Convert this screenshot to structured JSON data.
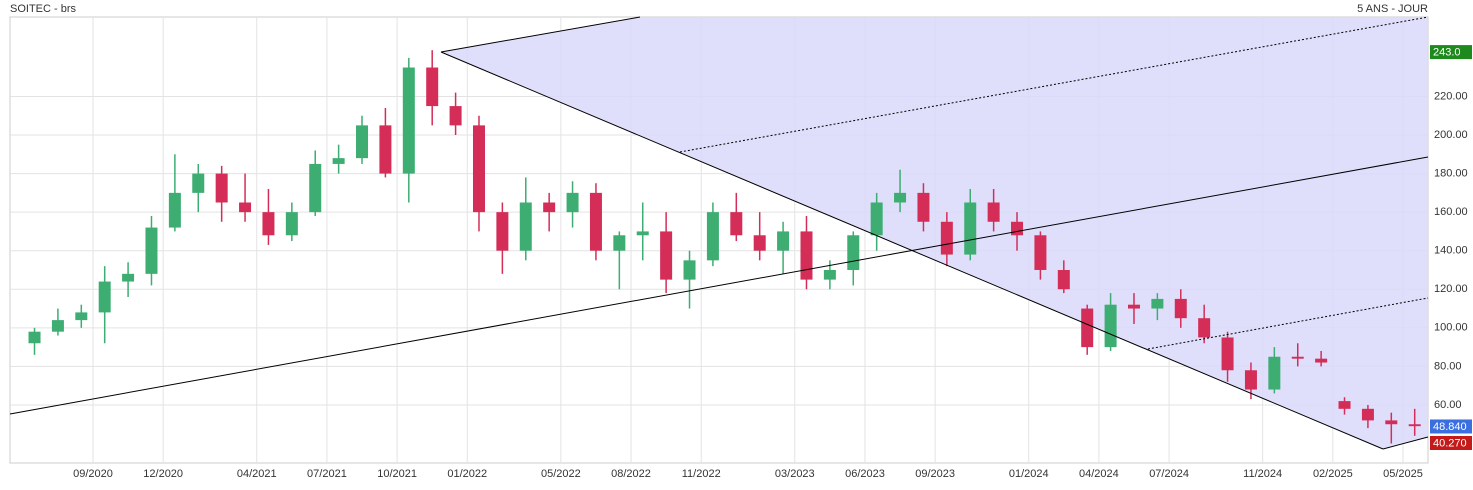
{
  "chart_data": {
    "type": "candlestick",
    "title": "SOITEC - brs",
    "subtitle": "5 ANS - JOUR",
    "x": [
      "06/2020",
      "07/2020",
      "08/2020",
      "09/2020",
      "10/2020",
      "11/2020",
      "12/2020",
      "01/2021",
      "02/2021",
      "03/2021",
      "04/2021",
      "05/2021",
      "06/2021",
      "07/2021",
      "08/2021",
      "09/2021",
      "10/2021",
      "11/2021",
      "12/2021",
      "01/2022",
      "02/2022",
      "03/2022",
      "04/2022",
      "05/2022",
      "06/2022",
      "07/2022",
      "08/2022",
      "09/2022",
      "10/2022",
      "11/2022",
      "12/2022",
      "01/2023",
      "02/2023",
      "03/2023",
      "04/2023",
      "05/2023",
      "06/2023",
      "07/2023",
      "08/2023",
      "09/2023",
      "10/2023",
      "11/2023",
      "12/2023",
      "01/2024",
      "02/2024",
      "03/2024",
      "04/2024",
      "05/2024",
      "06/2024",
      "07/2024",
      "08/2024",
      "09/2024",
      "10/2024",
      "11/2024",
      "12/2024",
      "01/2025",
      "02/2025",
      "03/2025",
      "04/2025",
      "05/2025"
    ],
    "open": [
      92,
      98,
      104,
      108,
      124,
      128,
      152,
      170,
      180,
      165,
      160,
      148,
      160,
      185,
      188,
      205,
      180,
      235,
      215,
      205,
      160,
      140,
      165,
      160,
      170,
      140,
      148,
      150,
      125,
      135,
      160,
      148,
      140,
      150,
      125,
      130,
      148,
      165,
      170,
      155,
      138,
      165,
      155,
      148,
      130,
      110,
      90,
      112,
      110,
      115,
      105,
      95,
      78,
      68,
      85,
      84,
      62,
      58,
      52,
      50
    ],
    "high": [
      100,
      110,
      112,
      132,
      134,
      158,
      190,
      185,
      184,
      180,
      172,
      165,
      192,
      195,
      210,
      214,
      240,
      244,
      222,
      210,
      165,
      178,
      170,
      176,
      175,
      150,
      165,
      160,
      140,
      165,
      170,
      160,
      155,
      158,
      135,
      150,
      170,
      182,
      175,
      160,
      172,
      172,
      160,
      150,
      135,
      112,
      118,
      118,
      118,
      120,
      112,
      98,
      82,
      90,
      92,
      88,
      64,
      60,
      56,
      58
    ],
    "low": [
      86,
      96,
      100,
      92,
      116,
      122,
      150,
      160,
      155,
      155,
      143,
      145,
      158,
      180,
      185,
      178,
      165,
      205,
      200,
      150,
      128,
      135,
      150,
      152,
      135,
      120,
      135,
      118,
      110,
      132,
      145,
      135,
      128,
      120,
      120,
      122,
      140,
      160,
      150,
      132,
      135,
      150,
      140,
      125,
      118,
      86,
      88,
      102,
      104,
      100,
      92,
      72,
      63,
      66,
      80,
      80,
      55,
      48,
      40,
      44
    ],
    "close": [
      98,
      104,
      108,
      124,
      128,
      152,
      170,
      180,
      165,
      160,
      148,
      160,
      185,
      188,
      205,
      180,
      235,
      215,
      205,
      160,
      140,
      165,
      160,
      170,
      140,
      148,
      150,
      125,
      135,
      160,
      148,
      140,
      150,
      125,
      130,
      148,
      165,
      170,
      155,
      138,
      165,
      155,
      148,
      130,
      120,
      90,
      112,
      110,
      115,
      105,
      95,
      78,
      68,
      85,
      84,
      82,
      58,
      52,
      50,
      49
    ],
    "up_color": "#3dad72",
    "down_color": "#d42e58",
    "ylim": [
      29.9,
      261.2
    ],
    "yticks": [
      {
        "value": 60,
        "label": "60.00"
      },
      {
        "value": 80,
        "label": "80.00"
      },
      {
        "value": 100,
        "label": "100.00"
      },
      {
        "value": 120,
        "label": "120.00"
      },
      {
        "value": 140,
        "label": "140.00"
      },
      {
        "value": 160,
        "label": "160.00"
      },
      {
        "value": 180,
        "label": "180.00"
      },
      {
        "value": 200,
        "label": "200.00"
      },
      {
        "value": 220,
        "label": "220.00"
      }
    ],
    "xticks": [
      "09/2020",
      "12/2020",
      "04/2021",
      "07/2021",
      "10/2021",
      "01/2022",
      "05/2022",
      "08/2022",
      "11/2022",
      "03/2023",
      "06/2023",
      "09/2023",
      "01/2024",
      "04/2024",
      "07/2024",
      "11/2024",
      "02/2025",
      "05/2025"
    ],
    "price_tags": [
      {
        "value": 243.0,
        "label": "243.0",
        "color": "#1e8a1e"
      },
      {
        "value": 48.84,
        "label": "48.840",
        "color": "#3b6fe0"
      },
      {
        "value": 40.27,
        "label": "40.270",
        "color": "#c41a1a"
      }
    ],
    "grid": true
  }
}
